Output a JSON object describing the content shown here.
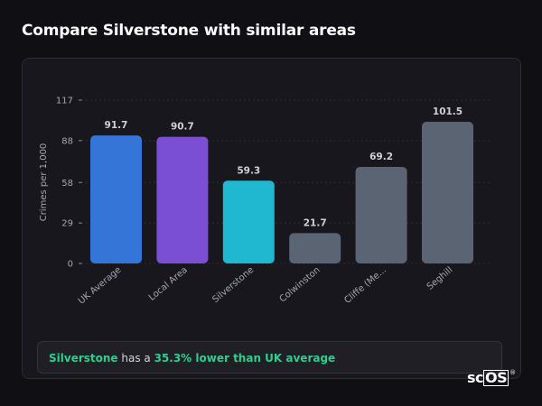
{
  "page": {
    "title": "Compare Silverstone with similar areas"
  },
  "note": {
    "area": "Silverstone",
    "mid": " has a ",
    "highlight": "35.3% lower than UK average"
  },
  "logo": {
    "prefix": "sc",
    "boxed": "OS",
    "mark": "®"
  },
  "chart_data": {
    "type": "bar",
    "categories": [
      "UK Average",
      "Local Area",
      "Silverstone",
      "Colwinston",
      "Cliffe (Me...",
      "Seghill"
    ],
    "values": [
      91.7,
      90.7,
      59.3,
      21.7,
      69.2,
      101.5
    ],
    "value_labels": [
      "91.7",
      "90.7",
      "59.3",
      "21.7",
      "69.2",
      "101.5"
    ],
    "colors": [
      "#3575d8",
      "#7b4fd4",
      "#1fb8d0",
      "#5b6472",
      "#5b6472",
      "#5b6472"
    ],
    "ylabel": "Crimes per 1,000",
    "yticks": [
      0,
      29,
      58,
      88,
      117
    ],
    "ylim": [
      0,
      117
    ],
    "grid": true
  }
}
